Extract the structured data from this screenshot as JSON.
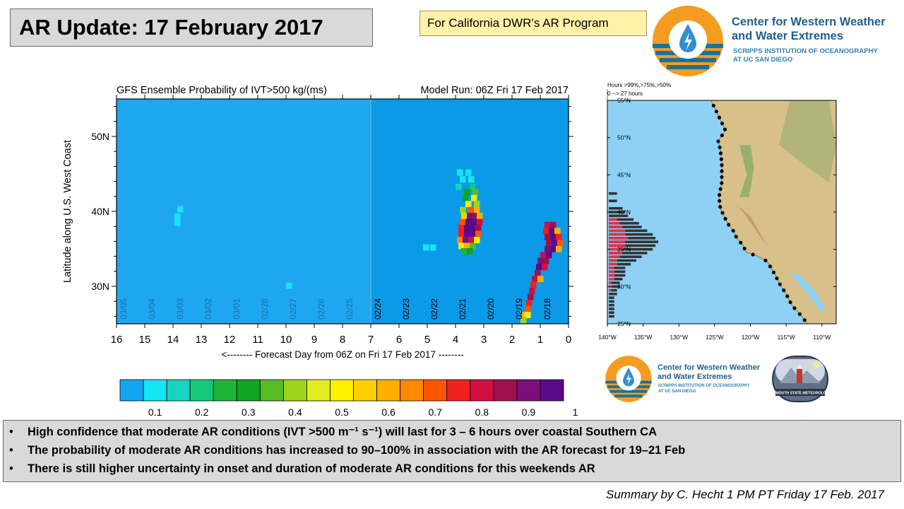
{
  "header": {
    "title": "AR Update: 17 February 2017",
    "tag": "For California DWR’s AR Program"
  },
  "org": {
    "name_line1": "Center for Western Weather",
    "name_line2": "and Water Extremes",
    "sub_line1": "SCRIPPS INSTITUTION OF OCEANOGRAPHY",
    "sub_line2": "AT UC SAN DIEGO",
    "partner_label": "PLYMOUTH STATE METEOROLOGY"
  },
  "colors": {
    "plot_bg": "#0b9ae8",
    "plot_bg_past": "#1ea7f0",
    "map_ocean": "#8fd0f5",
    "accent_orange": "#f39c21",
    "accent_blue": "#1f5f8b"
  },
  "chart_data": [
    {
      "type": "heatmap",
      "title": "GFS Ensemble Probability of IVT>500 kg/(ms)",
      "subtitle": "Model Run: 06Z Fri 17 Feb 2017",
      "xlabel": "<-------- Forecast Day from 06Z on Fri 17 Feb 2017 --------",
      "ylabel": "Latitude along U.S. West Coast",
      "xlim": [
        16,
        0
      ],
      "ylim": [
        25,
        55
      ],
      "x_ticks": [
        "16",
        "15",
        "14",
        "13",
        "12",
        "11",
        "10",
        "9",
        "8",
        "7",
        "6",
        "5",
        "4",
        "3",
        "2",
        "1",
        "0"
      ],
      "y_ticks": [
        "30N",
        "40N",
        "50N"
      ],
      "date_labels": [
        "03/05",
        "03/04",
        "03/03",
        "03/02",
        "03/01",
        "02/28",
        "02/27",
        "02/26",
        "02/25",
        "02/24",
        "02/23",
        "02/22",
        "02/21",
        "02/20",
        "02/19",
        "02/18"
      ],
      "colorbar_ticks": [
        "0.1",
        "0.2",
        "0.3",
        "0.4",
        "0.5",
        "0.6",
        "0.7",
        "0.8",
        "0.9",
        "1"
      ],
      "colorbar_colors": [
        "#12a6f0",
        "#14e6f6",
        "#17d3c0",
        "#17c87a",
        "#1fb43a",
        "#10a520",
        "#58bb28",
        "#9cd41a",
        "#e2ec1e",
        "#fff000",
        "#ffd000",
        "#ffae00",
        "#ff8800",
        "#ff5500",
        "#f02020",
        "#d01040",
        "#a01050",
        "#7a1078",
        "#5a0a8a"
      ],
      "cells": [
        {
          "day": 13.75,
          "lat": 40.3,
          "p": 0.08
        },
        {
          "day": 13.85,
          "lat": 39.3,
          "p": 0.08
        },
        {
          "day": 13.85,
          "lat": 38.5,
          "p": 0.08
        },
        {
          "day": 9.9,
          "lat": 30.1,
          "p": 0.05
        },
        {
          "day": 5.05,
          "lat": 35.2,
          "p": 0.08
        },
        {
          "day": 4.8,
          "lat": 35.2,
          "p": 0.08
        },
        {
          "day": 3.85,
          "lat": 45.2,
          "p": 0.06
        },
        {
          "day": 3.55,
          "lat": 45.2,
          "p": 0.06
        },
        {
          "day": 3.75,
          "lat": 44.3,
          "p": 0.08
        },
        {
          "day": 3.45,
          "lat": 44.3,
          "p": 0.08
        },
        {
          "day": 3.9,
          "lat": 43.3,
          "p": 0.1
        },
        {
          "day": 3.4,
          "lat": 43.3,
          "p": 0.15
        },
        {
          "day": 3.6,
          "lat": 42.6,
          "p": 0.3
        },
        {
          "day": 3.3,
          "lat": 42.6,
          "p": 0.35
        },
        {
          "day": 3.65,
          "lat": 41.8,
          "p": 0.3
        },
        {
          "day": 3.35,
          "lat": 41.8,
          "p": 0.45
        },
        {
          "day": 3.55,
          "lat": 41.0,
          "p": 0.5
        },
        {
          "day": 3.25,
          "lat": 41.0,
          "p": 0.4
        },
        {
          "day": 3.75,
          "lat": 40.2,
          "p": 0.4
        },
        {
          "day": 3.45,
          "lat": 40.2,
          "p": 0.7
        },
        {
          "day": 3.25,
          "lat": 40.2,
          "p": 0.6
        },
        {
          "day": 3.7,
          "lat": 39.4,
          "p": 0.55
        },
        {
          "day": 3.5,
          "lat": 39.4,
          "p": 0.95
        },
        {
          "day": 3.3,
          "lat": 39.4,
          "p": 0.9
        },
        {
          "day": 3.15,
          "lat": 39.4,
          "p": 0.6
        },
        {
          "day": 3.75,
          "lat": 38.6,
          "p": 0.7
        },
        {
          "day": 3.55,
          "lat": 38.6,
          "p": 1.0
        },
        {
          "day": 3.35,
          "lat": 38.6,
          "p": 1.0
        },
        {
          "day": 3.15,
          "lat": 38.6,
          "p": 0.85
        },
        {
          "day": 3.8,
          "lat": 37.8,
          "p": 0.75
        },
        {
          "day": 3.6,
          "lat": 37.8,
          "p": 1.0
        },
        {
          "day": 3.4,
          "lat": 37.8,
          "p": 1.0
        },
        {
          "day": 3.2,
          "lat": 37.8,
          "p": 0.9
        },
        {
          "day": 3.8,
          "lat": 37.0,
          "p": 0.8
        },
        {
          "day": 3.6,
          "lat": 37.0,
          "p": 1.0
        },
        {
          "day": 3.4,
          "lat": 37.0,
          "p": 1.0
        },
        {
          "day": 3.2,
          "lat": 37.0,
          "p": 0.7
        },
        {
          "day": 3.85,
          "lat": 36.2,
          "p": 0.65
        },
        {
          "day": 3.65,
          "lat": 36.2,
          "p": 0.95
        },
        {
          "day": 3.45,
          "lat": 36.2,
          "p": 0.85
        },
        {
          "day": 3.25,
          "lat": 36.2,
          "p": 0.5
        },
        {
          "day": 3.8,
          "lat": 35.4,
          "p": 0.45
        },
        {
          "day": 3.6,
          "lat": 35.4,
          "p": 0.6
        },
        {
          "day": 3.4,
          "lat": 35.4,
          "p": 0.35
        },
        {
          "day": 3.7,
          "lat": 34.7,
          "p": 0.2
        },
        {
          "day": 3.5,
          "lat": 34.7,
          "p": 0.25
        },
        {
          "day": 0.75,
          "lat": 38.2,
          "p": 0.85
        },
        {
          "day": 0.55,
          "lat": 38.2,
          "p": 0.9
        },
        {
          "day": 0.8,
          "lat": 37.4,
          "p": 0.8
        },
        {
          "day": 0.6,
          "lat": 37.4,
          "p": 1.0
        },
        {
          "day": 0.4,
          "lat": 37.4,
          "p": 0.6
        },
        {
          "day": 0.75,
          "lat": 36.6,
          "p": 0.9
        },
        {
          "day": 0.55,
          "lat": 36.6,
          "p": 1.0
        },
        {
          "day": 0.35,
          "lat": 36.6,
          "p": 0.75
        },
        {
          "day": 0.7,
          "lat": 35.8,
          "p": 0.9
        },
        {
          "day": 0.5,
          "lat": 35.8,
          "p": 1.0
        },
        {
          "day": 0.3,
          "lat": 35.8,
          "p": 0.7
        },
        {
          "day": 0.75,
          "lat": 35.0,
          "p": 0.95
        },
        {
          "day": 0.55,
          "lat": 35.0,
          "p": 1.0
        },
        {
          "day": 0.35,
          "lat": 35.0,
          "p": 0.6
        },
        {
          "day": 0.9,
          "lat": 34.2,
          "p": 0.85
        },
        {
          "day": 0.7,
          "lat": 34.2,
          "p": 1.0
        },
        {
          "day": 1.0,
          "lat": 33.4,
          "p": 0.95
        },
        {
          "day": 0.8,
          "lat": 33.4,
          "p": 0.9
        },
        {
          "day": 1.05,
          "lat": 32.6,
          "p": 1.0
        },
        {
          "day": 0.85,
          "lat": 32.6,
          "p": 0.85
        },
        {
          "day": 1.1,
          "lat": 31.8,
          "p": 0.9
        },
        {
          "day": 1.2,
          "lat": 31.0,
          "p": 0.85
        },
        {
          "day": 1.0,
          "lat": 31.0,
          "p": 0.6
        },
        {
          "day": 1.25,
          "lat": 30.2,
          "p": 0.8
        },
        {
          "day": 1.3,
          "lat": 29.4,
          "p": 0.85
        },
        {
          "day": 1.35,
          "lat": 28.6,
          "p": 0.9
        },
        {
          "day": 1.4,
          "lat": 27.8,
          "p": 0.8
        },
        {
          "day": 1.45,
          "lat": 27.0,
          "p": 0.7
        },
        {
          "day": 1.55,
          "lat": 26.2,
          "p": 0.6
        },
        {
          "day": 1.45,
          "lat": 26.2,
          "p": 0.5
        },
        {
          "day": 1.6,
          "lat": 25.5,
          "p": 0.4
        }
      ]
    },
    {
      "type": "bar",
      "title": "Hours >99%,>75%,>50%",
      "subtitle": "0 --> 27 hours",
      "x_ticks": [
        "140°W",
        "135°W",
        "130°W",
        "125°W",
        "120°W",
        "115°W",
        "110°W"
      ],
      "y_ticks": [
        "25°N",
        "30°N",
        "35°N",
        "40°N",
        "45°N",
        "50°N",
        "55°N"
      ],
      "xlim": [
        0,
        27
      ],
      "ylim": [
        25,
        55
      ],
      "series": [
        {
          "values": [
            {
              "lat": 42.5,
              "v": 3
            },
            {
              "lat": 41.5,
              "v": 3
            },
            {
              "lat": 40.5,
              "v": 5
            },
            {
              "lat": 40.0,
              "v": 6
            },
            {
              "lat": 39.5,
              "v": 7
            },
            {
              "lat": 39.0,
              "v": 9
            },
            {
              "lat": 38.5,
              "v": 11
            },
            {
              "lat": 38.0,
              "v": 12
            },
            {
              "lat": 37.5,
              "v": 14
            },
            {
              "lat": 37.0,
              "v": 16
            },
            {
              "lat": 36.5,
              "v": 17
            },
            {
              "lat": 36.0,
              "v": 18
            },
            {
              "lat": 35.5,
              "v": 17
            },
            {
              "lat": 35.0,
              "v": 16
            },
            {
              "lat": 34.5,
              "v": 14
            },
            {
              "lat": 34.0,
              "v": 12
            },
            {
              "lat": 33.5,
              "v": 10
            },
            {
              "lat": 33.0,
              "v": 8
            },
            {
              "lat": 32.5,
              "v": 6
            },
            {
              "lat": 32.0,
              "v": 6
            },
            {
              "lat": 31.5,
              "v": 6
            },
            {
              "lat": 31.0,
              "v": 5
            },
            {
              "lat": 30.5,
              "v": 4
            },
            {
              "lat": 30.0,
              "v": 4
            },
            {
              "lat": 29.5,
              "v": 3
            },
            {
              "lat": 29.0,
              "v": 3
            },
            {
              "lat": 28.5,
              "v": 2
            },
            {
              "lat": 28.0,
              "v": 2
            },
            {
              "lat": 27.5,
              "v": 2
            },
            {
              "lat": 27.0,
              "v": 2
            },
            {
              "lat": 26.5,
              "v": 2
            },
            {
              "lat": 26.0,
              "v": 2
            }
          ]
        },
        {
          "values": [
            {
              "lat": 39.0,
              "v": 3
            },
            {
              "lat": 38.5,
              "v": 4
            },
            {
              "lat": 38.0,
              "v": 5
            },
            {
              "lat": 37.5,
              "v": 6
            },
            {
              "lat": 37.0,
              "v": 6
            },
            {
              "lat": 36.5,
              "v": 7
            },
            {
              "lat": 36.0,
              "v": 6
            },
            {
              "lat": 35.5,
              "v": 6
            },
            {
              "lat": 35.0,
              "v": 5
            },
            {
              "lat": 34.5,
              "v": 5
            },
            {
              "lat": 34.0,
              "v": 4
            },
            {
              "lat": 33.5,
              "v": 3
            },
            {
              "lat": 33.0,
              "v": 3
            },
            {
              "lat": 32.5,
              "v": 2
            },
            {
              "lat": 32.0,
              "v": 2
            },
            {
              "lat": 31.5,
              "v": 2
            },
            {
              "lat": 31.0,
              "v": 2
            },
            {
              "lat": 30.5,
              "v": 1
            },
            {
              "lat": 30.0,
              "v": 1
            },
            {
              "lat": 29.5,
              "v": 1
            }
          ]
        }
      ]
    }
  ],
  "bullets": [
    "High confidence that moderate AR conditions  (IVT >500 m⁻¹ s⁻¹) will last for 3 – 6 hours over coastal Southern CA",
    "The probability  of moderate AR conditions  has increased to 90–100% in association  with the AR forecast for 19–21 Feb",
    "There is still higher uncertainty  in onset and duration  of moderate AR conditions  for this weekends AR"
  ],
  "bullet_symbol": "•",
  "summary": "Summary by C. Hecht 1 PM PT Friday 17 Feb. 2017"
}
